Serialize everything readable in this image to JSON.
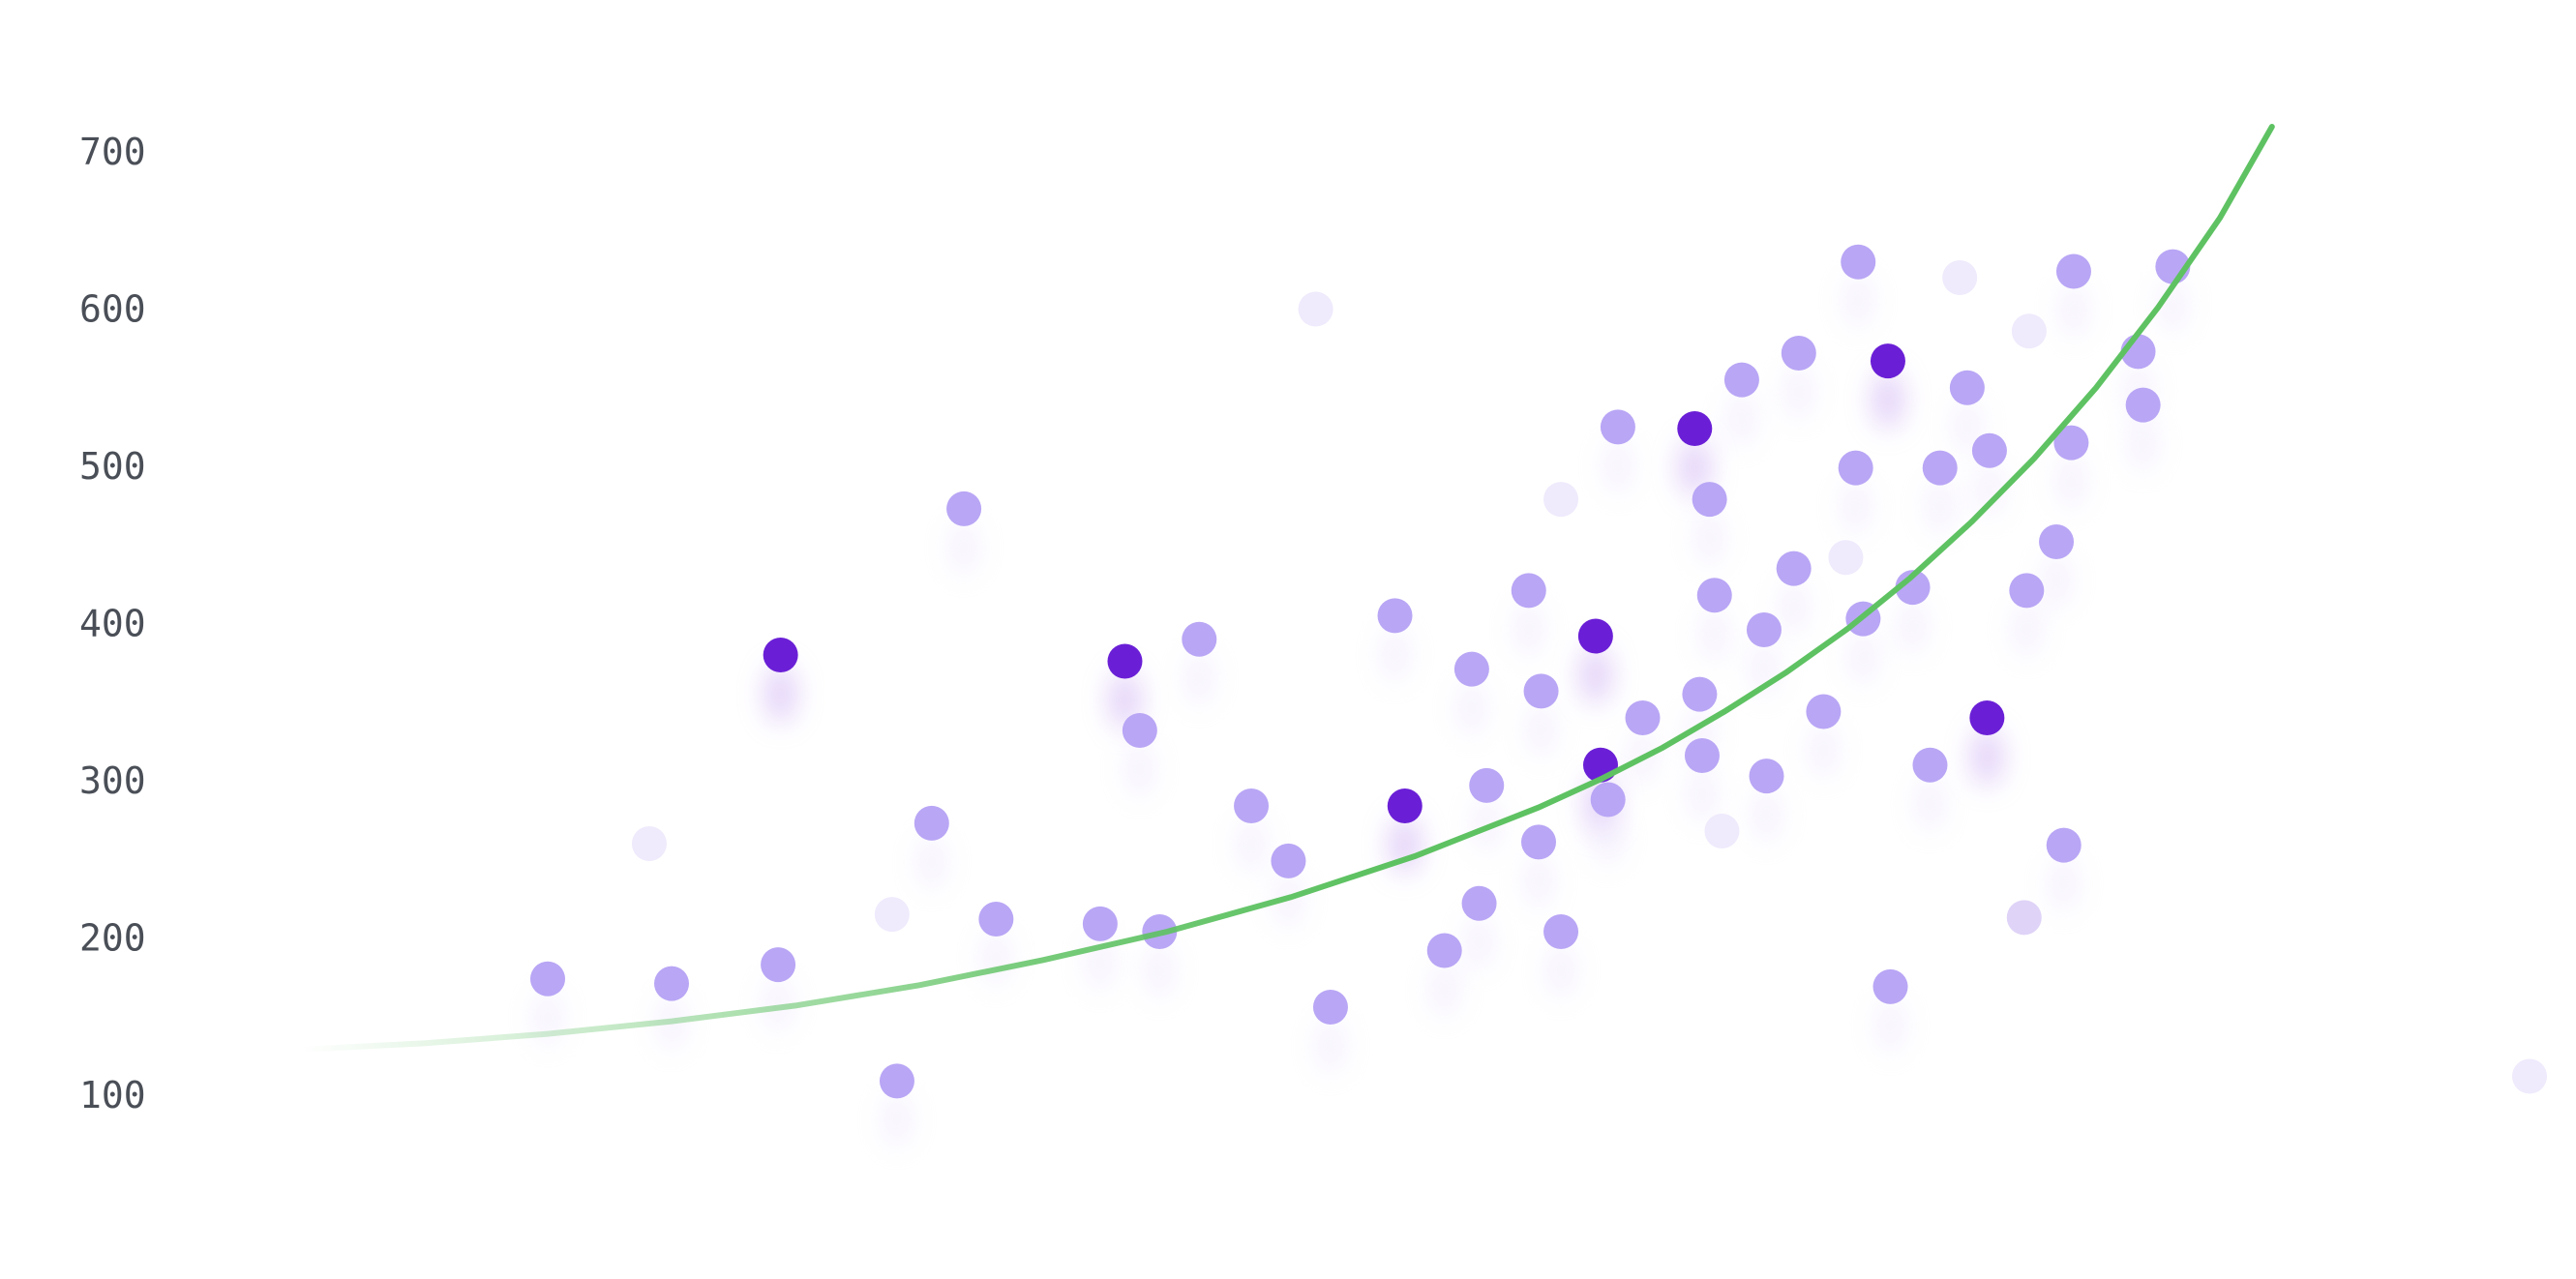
{
  "chart_data": {
    "type": "scatter",
    "title": "",
    "xlabel": "",
    "ylabel": "",
    "xlim": [
      0,
      100
    ],
    "ylim": [
      40,
      760
    ],
    "yticks": [
      100,
      200,
      300,
      400,
      500,
      600,
      700
    ],
    "grid": false,
    "legend": "none",
    "colors": {
      "point": "#b9a6f5",
      "point_highlight": "#6a1fd6",
      "point_faint": "#efeafc",
      "point_faint2": "#dfd3f7",
      "trend": "#5ec262",
      "tick_text": "#4a4f57"
    },
    "points": [
      {
        "x": 10.0,
        "y": 174,
        "kind": "normal"
      },
      {
        "x": 14.1,
        "y": 260,
        "kind": "faint"
      },
      {
        "x": 15.0,
        "y": 171,
        "kind": "normal"
      },
      {
        "x": 19.3,
        "y": 183,
        "kind": "normal"
      },
      {
        "x": 19.4,
        "y": 380,
        "kind": "highlight"
      },
      {
        "x": 23.9,
        "y": 215,
        "kind": "faint"
      },
      {
        "x": 24.1,
        "y": 109,
        "kind": "normal"
      },
      {
        "x": 25.5,
        "y": 273,
        "kind": "normal"
      },
      {
        "x": 26.8,
        "y": 473,
        "kind": "normal"
      },
      {
        "x": 28.1,
        "y": 212,
        "kind": "normal"
      },
      {
        "x": 32.3,
        "y": 209,
        "kind": "normal"
      },
      {
        "x": 33.3,
        "y": 376,
        "kind": "highlight"
      },
      {
        "x": 33.9,
        "y": 332,
        "kind": "normal"
      },
      {
        "x": 34.7,
        "y": 204,
        "kind": "normal"
      },
      {
        "x": 36.3,
        "y": 390,
        "kind": "normal"
      },
      {
        "x": 38.4,
        "y": 284,
        "kind": "normal"
      },
      {
        "x": 39.9,
        "y": 249,
        "kind": "normal"
      },
      {
        "x": 41.0,
        "y": 600,
        "kind": "faint"
      },
      {
        "x": 41.6,
        "y": 156,
        "kind": "normal"
      },
      {
        "x": 44.2,
        "y": 405,
        "kind": "normal"
      },
      {
        "x": 44.6,
        "y": 284,
        "kind": "highlight"
      },
      {
        "x": 46.2,
        "y": 192,
        "kind": "normal"
      },
      {
        "x": 47.3,
        "y": 371,
        "kind": "normal"
      },
      {
        "x": 47.6,
        "y": 222,
        "kind": "normal"
      },
      {
        "x": 47.9,
        "y": 297,
        "kind": "normal"
      },
      {
        "x": 49.6,
        "y": 421,
        "kind": "normal"
      },
      {
        "x": 50.0,
        "y": 261,
        "kind": "normal"
      },
      {
        "x": 50.1,
        "y": 357,
        "kind": "normal"
      },
      {
        "x": 50.9,
        "y": 204,
        "kind": "normal"
      },
      {
        "x": 50.9,
        "y": 479,
        "kind": "faint"
      },
      {
        "x": 52.3,
        "y": 392,
        "kind": "highlight"
      },
      {
        "x": 52.5,
        "y": 310,
        "kind": "highlight"
      },
      {
        "x": 52.8,
        "y": 288,
        "kind": "normal"
      },
      {
        "x": 53.2,
        "y": 525,
        "kind": "normal"
      },
      {
        "x": 54.2,
        "y": 340,
        "kind": "normal"
      },
      {
        "x": 56.3,
        "y": 524,
        "kind": "highlight"
      },
      {
        "x": 56.5,
        "y": 355,
        "kind": "normal"
      },
      {
        "x": 56.6,
        "y": 316,
        "kind": "normal"
      },
      {
        "x": 56.9,
        "y": 479,
        "kind": "normal"
      },
      {
        "x": 57.1,
        "y": 418,
        "kind": "normal"
      },
      {
        "x": 57.4,
        "y": 268,
        "kind": "faint"
      },
      {
        "x": 58.2,
        "y": 555,
        "kind": "normal"
      },
      {
        "x": 59.1,
        "y": 396,
        "kind": "normal"
      },
      {
        "x": 59.2,
        "y": 303,
        "kind": "normal"
      },
      {
        "x": 60.3,
        "y": 435,
        "kind": "normal"
      },
      {
        "x": 60.5,
        "y": 572,
        "kind": "normal"
      },
      {
        "x": 61.5,
        "y": 344,
        "kind": "normal"
      },
      {
        "x": 62.4,
        "y": 442,
        "kind": "faint"
      },
      {
        "x": 62.8,
        "y": 499,
        "kind": "normal"
      },
      {
        "x": 62.9,
        "y": 630,
        "kind": "normal"
      },
      {
        "x": 63.1,
        "y": 403,
        "kind": "normal"
      },
      {
        "x": 64.1,
        "y": 567,
        "kind": "highlight"
      },
      {
        "x": 64.2,
        "y": 169,
        "kind": "normal"
      },
      {
        "x": 65.1,
        "y": 423,
        "kind": "normal"
      },
      {
        "x": 65.8,
        "y": 310,
        "kind": "normal"
      },
      {
        "x": 66.2,
        "y": 499,
        "kind": "normal"
      },
      {
        "x": 67.0,
        "y": 620,
        "kind": "faint"
      },
      {
        "x": 67.3,
        "y": 550,
        "kind": "normal"
      },
      {
        "x": 68.1,
        "y": 340,
        "kind": "highlight"
      },
      {
        "x": 68.2,
        "y": 510,
        "kind": "normal"
      },
      {
        "x": 69.6,
        "y": 213,
        "kind": "faint2"
      },
      {
        "x": 69.7,
        "y": 421,
        "kind": "normal"
      },
      {
        "x": 69.8,
        "y": 586,
        "kind": "faint"
      },
      {
        "x": 70.9,
        "y": 452,
        "kind": "normal"
      },
      {
        "x": 71.2,
        "y": 259,
        "kind": "normal"
      },
      {
        "x": 71.5,
        "y": 515,
        "kind": "normal"
      },
      {
        "x": 71.6,
        "y": 624,
        "kind": "normal"
      },
      {
        "x": 74.2,
        "y": 573,
        "kind": "normal"
      },
      {
        "x": 74.4,
        "y": 539,
        "kind": "normal"
      },
      {
        "x": 75.6,
        "y": 627,
        "kind": "normal"
      },
      {
        "x": 90.0,
        "y": 112,
        "kind": "faint"
      }
    ],
    "trend": {
      "type": "exponential",
      "x": [
        0,
        5,
        10,
        15,
        20,
        25,
        30,
        35,
        40,
        45,
        50,
        52.5,
        55,
        57.5,
        60,
        62.5,
        65,
        67.5,
        70,
        72.5,
        75,
        77.5,
        79.6
      ],
      "y": [
        129,
        133,
        139,
        147,
        157,
        170,
        186,
        204,
        226,
        252,
        283,
        301,
        321,
        344,
        369,
        397,
        429,
        465,
        505,
        550,
        601,
        658,
        716
      ]
    }
  }
}
